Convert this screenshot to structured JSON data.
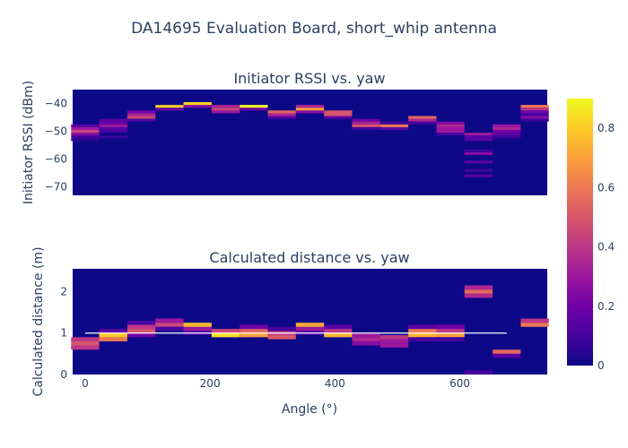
{
  "chart_data": {
    "type": "heatmap",
    "title": "DA14695 Evaluation Board, short_whip antenna",
    "xlabel": "Angle (°)",
    "x_ticks": [
      0,
      200,
      400,
      600
    ],
    "xlim": [
      -20,
      740
    ],
    "colorscale": [
      "#0d0887",
      "#46039f",
      "#7201a8",
      "#9c179e",
      "#bd3786",
      "#d8576b",
      "#ed7953",
      "#fb9f3a",
      "#fdca26",
      "#f0f921"
    ],
    "colorbar": {
      "range": [
        0,
        0.9
      ],
      "ticks": [
        0,
        0.2,
        0.4,
        0.6,
        0.8
      ]
    },
    "subplots": [
      {
        "title": "Initiator RSSI vs. yaw",
        "ylabel": "Initiator RSSI (dBm)",
        "ylim": [
          -73,
          -35
        ],
        "y_ticks": [
          -40,
          -50,
          -60,
          -70
        ],
        "bin_width": 45,
        "bin_height": 1,
        "columns": [
          {
            "angle": 0,
            "cells": [
              [
                -51,
                0.25
              ],
              [
                -50,
                0.45
              ],
              [
                -49,
                0.3
              ],
              [
                -48,
                0.15
              ],
              [
                -52,
                0.1
              ],
              [
                -53,
                0.05
              ]
            ]
          },
          {
            "angle": 45,
            "cells": [
              [
                -48,
                0.3
              ],
              [
                -47,
                0.2
              ],
              [
                -46,
                0.15
              ],
              [
                -49,
                0.15
              ],
              [
                -50,
                0.1
              ],
              [
                -52,
                0.08
              ]
            ]
          },
          {
            "angle": 90,
            "cells": [
              [
                -45,
                0.45
              ],
              [
                -44,
                0.35
              ],
              [
                -43,
                0.2
              ],
              [
                -46,
                0.12
              ]
            ]
          },
          {
            "angle": 135,
            "cells": [
              [
                -42,
                0.2
              ],
              [
                -41,
                0.82
              ],
              [
                -40,
                0.0
              ]
            ]
          },
          {
            "angle": 180,
            "cells": [
              [
                -41,
                0.25
              ],
              [
                -40,
                0.82
              ],
              [
                -39,
                0.0
              ]
            ]
          },
          {
            "angle": 225,
            "cells": [
              [
                -43,
                0.3
              ],
              [
                -42,
                0.45
              ],
              [
                -41,
                0.35
              ]
            ]
          },
          {
            "angle": 270,
            "cells": [
              [
                -42,
                0.2
              ],
              [
                -41,
                0.9
              ]
            ]
          },
          {
            "angle": 315,
            "cells": [
              [
                -44,
                0.35
              ],
              [
                -43,
                0.55
              ],
              [
                -45,
                0.15
              ]
            ]
          },
          {
            "angle": 360,
            "cells": [
              [
                -43,
                0.25
              ],
              [
                -42,
                0.7
              ],
              [
                -41,
                0.35
              ]
            ]
          },
          {
            "angle": 405,
            "cells": [
              [
                -45,
                0.15
              ],
              [
                -44,
                0.5
              ],
              [
                -43,
                0.5
              ]
            ]
          },
          {
            "angle": 450,
            "cells": [
              [
                -48,
                0.5
              ],
              [
                -47,
                0.35
              ],
              [
                -46,
                0.2
              ],
              [
                -49,
                0.1
              ]
            ]
          },
          {
            "angle": 495,
            "cells": [
              [
                -49,
                0.15
              ],
              [
                -48,
                0.6
              ],
              [
                -47,
                0.1
              ]
            ]
          },
          {
            "angle": 540,
            "cells": [
              [
                -46,
                0.35
              ],
              [
                -45,
                0.55
              ],
              [
                -47,
                0.1
              ]
            ]
          },
          {
            "angle": 585,
            "cells": [
              [
                -48,
                0.35
              ],
              [
                -49,
                0.3
              ],
              [
                -50,
                0.3
              ],
              [
                -47,
                0.25
              ],
              [
                -51,
                0.1
              ]
            ]
          },
          {
            "angle": 630,
            "cells": [
              [
                -51,
                0.3
              ],
              [
                -52,
                0.15
              ],
              [
                -53,
                0.15
              ],
              [
                -58,
                0.25
              ],
              [
                -61,
                0.15
              ],
              [
                -64,
                0.1
              ],
              [
                -66,
                0.15
              ],
              [
                -57,
                0.1
              ]
            ]
          },
          {
            "angle": 675,
            "cells": [
              [
                -49,
                0.35
              ],
              [
                -48,
                0.3
              ],
              [
                -50,
                0.2
              ],
              [
                -51,
                0.15
              ],
              [
                -52,
                0.1
              ]
            ]
          },
          {
            "angle": 720,
            "cells": [
              [
                -41,
                0.6
              ],
              [
                -42,
                0.4
              ],
              [
                -43,
                0.2
              ],
              [
                -45,
                0.25
              ],
              [
                -44,
                0.1
              ],
              [
                -46,
                0.08
              ]
            ]
          }
        ]
      },
      {
        "title": "Calculated distance vs. yaw",
        "ylabel": "Calculated distance (m)",
        "ylim": [
          0,
          2.55
        ],
        "y_ticks": [
          0,
          1,
          2
        ],
        "bin_width": 45,
        "bin_height": 0.1,
        "reference_line": {
          "y": 1.0,
          "x_range": [
            0,
            675
          ]
        },
        "columns": [
          {
            "angle": 0,
            "cells": [
              [
                0.65,
                0.4
              ],
              [
                0.75,
                0.5
              ],
              [
                0.85,
                0.4
              ]
            ]
          },
          {
            "angle": 45,
            "cells": [
              [
                0.85,
                0.6
              ],
              [
                0.95,
                0.8
              ],
              [
                1.05,
                0.15
              ]
            ]
          },
          {
            "angle": 90,
            "cells": [
              [
                1.05,
                0.5
              ],
              [
                1.15,
                0.4
              ],
              [
                0.95,
                0.2
              ],
              [
                1.25,
                0.1
              ]
            ]
          },
          {
            "angle": 135,
            "cells": [
              [
                1.2,
                0.45
              ],
              [
                1.3,
                0.3
              ],
              [
                1.1,
                0.1
              ]
            ]
          },
          {
            "angle": 180,
            "cells": [
              [
                1.1,
                0.3
              ],
              [
                1.2,
                0.75
              ],
              [
                1.0,
                0.1
              ]
            ]
          },
          {
            "angle": 225,
            "cells": [
              [
                0.95,
                0.85
              ],
              [
                1.05,
                0.45
              ]
            ]
          },
          {
            "angle": 270,
            "cells": [
              [
                0.95,
                0.7
              ],
              [
                1.05,
                0.55
              ],
              [
                1.15,
                0.2
              ]
            ]
          },
          {
            "angle": 315,
            "cells": [
              [
                0.9,
                0.5
              ],
              [
                1.0,
                0.4
              ],
              [
                1.1,
                0.1
              ]
            ]
          },
          {
            "angle": 360,
            "cells": [
              [
                1.1,
                0.3
              ],
              [
                1.2,
                0.72
              ],
              [
                1.0,
                0.1
              ]
            ]
          },
          {
            "angle": 405,
            "cells": [
              [
                0.95,
                0.75
              ],
              [
                1.05,
                0.4
              ],
              [
                1.15,
                0.15
              ]
            ]
          },
          {
            "angle": 450,
            "cells": [
              [
                0.75,
                0.25
              ],
              [
                0.85,
                0.35
              ],
              [
                0.95,
                0.3
              ]
            ]
          },
          {
            "angle": 495,
            "cells": [
              [
                0.7,
                0.3
              ],
              [
                0.8,
                0.3
              ],
              [
                0.9,
                0.4
              ]
            ]
          },
          {
            "angle": 540,
            "cells": [
              [
                0.95,
                0.75
              ],
              [
                1.05,
                0.6
              ],
              [
                1.15,
                0.15
              ],
              [
                0.85,
                0.1
              ]
            ]
          },
          {
            "angle": 585,
            "cells": [
              [
                0.95,
                0.7
              ],
              [
                1.05,
                0.4
              ],
              [
                1.15,
                0.2
              ],
              [
                0.85,
                0.1
              ]
            ]
          },
          {
            "angle": 630,
            "cells": [
              [
                1.9,
                0.35
              ],
              [
                2.0,
                0.55
              ],
              [
                2.1,
                0.35
              ],
              [
                0.05,
                0.1
              ]
            ]
          },
          {
            "angle": 675,
            "cells": [
              [
                0.55,
                0.55
              ],
              [
                0.45,
                0.15
              ]
            ]
          },
          {
            "angle": 720,
            "cells": [
              [
                1.2,
                0.6
              ],
              [
                1.3,
                0.4
              ]
            ]
          }
        ]
      }
    ]
  }
}
